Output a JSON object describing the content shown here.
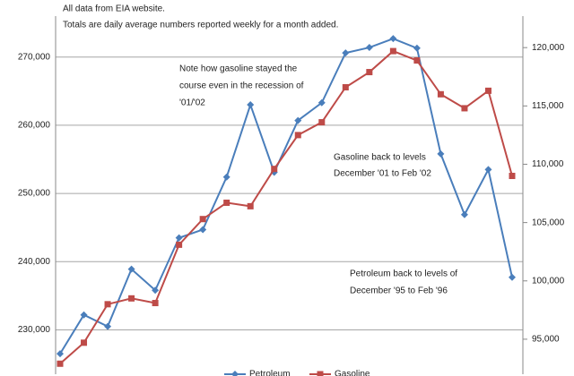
{
  "chart_data": {
    "type": "line",
    "annotations": [
      "All data from EIA website.",
      "Totals are daily average numbers reported weekly for a month added.",
      "Note how gasoline stayed the",
      "course even in the recession of",
      "'01/'02",
      "Gasoline back to levels",
      "December '01 to Feb '02",
      "Petroleum  back to levels of",
      "December '95 to Feb '96"
    ],
    "categories": [
      null,
      null,
      null,
      null,
      null,
      null,
      null,
      null,
      null,
      null,
      null,
      null,
      null,
      null,
      null,
      null,
      null,
      null,
      null,
      null
    ],
    "series": [
      {
        "name": "Petroleum",
        "color": "#4a7ebb",
        "marker": "diamond",
        "values": [
          226500,
          232200,
          230500,
          238900,
          235800,
          243500,
          244700,
          252400,
          263000,
          253100,
          260700,
          263300,
          270600,
          271400,
          272700,
          271300,
          255800,
          246900,
          253500,
          237700
        ]
      },
      {
        "name": "Gasoline",
        "color": "#be4b48",
        "marker": "square",
        "axis": "y2",
        "values": [
          92900,
          94700,
          98000,
          98500,
          98100,
          103100,
          105300,
          106700,
          106400,
          109600,
          112500,
          113600,
          116600,
          117900,
          119700,
          118900,
          116000,
          114800,
          116300,
          109000
        ]
      }
    ],
    "ylim": [
      223500,
      276000
    ],
    "yticks": [
      {
        "value": 230000,
        "label": "230,000"
      },
      {
        "value": 240000,
        "label": "240,000"
      },
      {
        "value": 250000,
        "label": "250,000"
      },
      {
        "value": 260000,
        "label": "260,000"
      },
      {
        "value": 270000,
        "label": "270,000"
      }
    ],
    "y2lim": [
      92000,
      122700
    ],
    "y2ticks": [
      {
        "value": 95000,
        "label": "95,000"
      },
      {
        "value": 100000,
        "label": "100,000"
      },
      {
        "value": 105000,
        "label": "105,000"
      },
      {
        "value": 110000,
        "label": "110,000"
      },
      {
        "value": 115000,
        "label": "115,000"
      },
      {
        "value": 120000,
        "label": "120,000"
      }
    ],
    "grid": true,
    "legend": "bottom"
  }
}
